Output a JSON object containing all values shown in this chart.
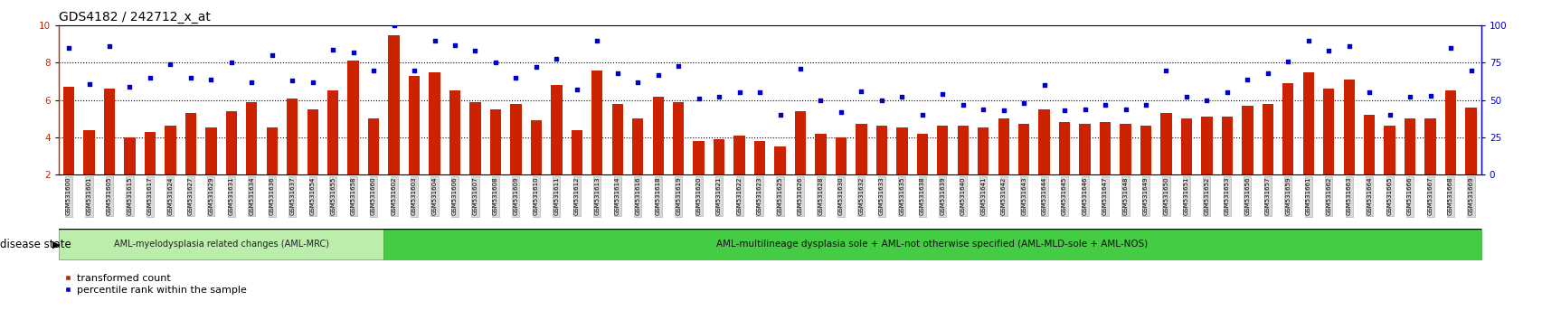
{
  "title": "GDS4182 / 242712_x_at",
  "samples": [
    "GSM531600",
    "GSM531601",
    "GSM531605",
    "GSM531615",
    "GSM531617",
    "GSM531624",
    "GSM531627",
    "GSM531629",
    "GSM531631",
    "GSM531634",
    "GSM531636",
    "GSM531637",
    "GSM531654",
    "GSM531655",
    "GSM531658",
    "GSM531660",
    "GSM531602",
    "GSM531603",
    "GSM531604",
    "GSM531606",
    "GSM531607",
    "GSM531608",
    "GSM531609",
    "GSM531610",
    "GSM531611",
    "GSM531612",
    "GSM531613",
    "GSM531614",
    "GSM531616",
    "GSM531618",
    "GSM531619",
    "GSM531620",
    "GSM531621",
    "GSM531622",
    "GSM531623",
    "GSM531625",
    "GSM531626",
    "GSM531628",
    "GSM531630",
    "GSM531632",
    "GSM531633",
    "GSM531635",
    "GSM531638",
    "GSM531639",
    "GSM531640",
    "GSM531641",
    "GSM531642",
    "GSM531643",
    "GSM531644",
    "GSM531645",
    "GSM531646",
    "GSM531647",
    "GSM531648",
    "GSM531649",
    "GSM531650",
    "GSM531651",
    "GSM531652",
    "GSM531653",
    "GSM531656",
    "GSM531657",
    "GSM531659",
    "GSM531661",
    "GSM531662",
    "GSM531663",
    "GSM531664",
    "GSM531665",
    "GSM531666",
    "GSM531667",
    "GSM531668",
    "GSM531669"
  ],
  "bar_values": [
    6.7,
    4.4,
    6.6,
    4.0,
    4.3,
    4.6,
    5.3,
    4.5,
    5.4,
    5.9,
    4.5,
    6.1,
    5.5,
    6.5,
    8.1,
    5.0,
    9.5,
    7.3,
    7.5,
    6.5,
    5.9,
    5.5,
    5.8,
    4.9,
    6.8,
    4.4,
    7.6,
    5.8,
    5.0,
    6.2,
    5.9,
    3.8,
    3.9,
    4.1,
    3.8,
    3.5,
    5.4,
    4.2,
    4.0,
    4.7,
    4.6,
    4.5,
    4.2,
    4.6,
    4.6,
    4.5,
    5.0,
    4.7,
    5.5,
    4.8,
    4.7,
    4.8,
    4.7,
    4.6,
    5.3,
    5.0,
    5.1,
    5.1,
    5.7,
    5.8,
    6.9,
    7.5,
    6.6,
    7.1,
    5.2,
    4.6,
    5.0,
    5.0,
    6.5,
    5.6
  ],
  "dot_values": [
    85,
    61,
    86,
    59,
    65,
    74,
    65,
    64,
    75,
    62,
    80,
    63,
    62,
    84,
    82,
    70,
    100,
    70,
    90,
    87,
    83,
    75,
    65,
    72,
    78,
    57,
    90,
    68,
    62,
    67,
    73,
    51,
    52,
    55,
    55,
    40,
    71,
    50,
    42,
    56,
    50,
    52,
    40,
    54,
    47,
    44,
    43,
    48,
    60,
    43,
    44,
    47,
    44,
    47,
    70,
    52,
    50,
    55,
    64,
    68,
    76,
    90,
    83,
    86,
    55,
    40,
    52,
    53,
    85,
    70
  ],
  "group1_count": 16,
  "group1_label": "AML-myelodysplasia related changes (AML-MRC)",
  "group1_color": "#bbeeaa",
  "group2_label": "AML-multilineage dysplasia sole + AML-not otherwise specified (AML-MLD-sole + AML-NOS)",
  "group2_color": "#44cc44",
  "bar_color": "#cc2200",
  "dot_color": "#0000cc",
  "ylim_left": [
    2,
    10
  ],
  "ylim_right": [
    0,
    100
  ],
  "yticks_left": [
    2,
    4,
    6,
    8,
    10
  ],
  "yticks_right": [
    0,
    25,
    50,
    75,
    100
  ],
  "hlines": [
    4,
    6,
    8
  ],
  "legend_bar": "transformed count",
  "legend_dot": "percentile rank within the sample",
  "disease_state_label": "disease state"
}
